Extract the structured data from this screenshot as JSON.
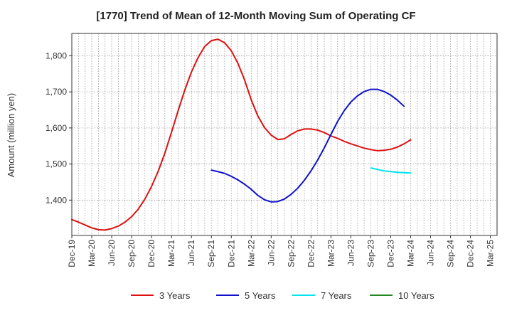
{
  "chart_data": {
    "type": "line",
    "title": "[1770]  Trend of Mean of 12-Month Moving Sum of Operating CF",
    "xlabel": "",
    "ylabel": "Amount (million yen)",
    "ylim": [
      1302,
      1862
    ],
    "yticks": [
      1400,
      1500,
      1600,
      1700,
      1800
    ],
    "ytick_labels": [
      "1,400",
      "1,500",
      "1,600",
      "1,700",
      "1,800"
    ],
    "x_tick_labels": [
      "Dec-19",
      "Mar-20",
      "Jun-20",
      "Sep-20",
      "Dec-20",
      "Mar-21",
      "Jun-21",
      "Sep-21",
      "Dec-21",
      "Mar-22",
      "Jun-22",
      "Sep-22",
      "Dec-22",
      "Mar-23",
      "Jun-23",
      "Sep-23",
      "Dec-23",
      "Mar-24",
      "Jun-24",
      "Sep-24",
      "Dec-24",
      "Mar-25"
    ],
    "x_start": "2019-12",
    "num_months": 64,
    "grid": true,
    "legend_position": "bottom",
    "series": [
      {
        "name": "3 Years",
        "color": "#dd1111",
        "start_index": 0,
        "values": [
          1346,
          1339,
          1331,
          1323,
          1318,
          1317,
          1321,
          1328,
          1339,
          1354,
          1375,
          1403,
          1438,
          1480,
          1530,
          1588,
          1648,
          1705,
          1755,
          1795,
          1826,
          1842,
          1846,
          1836,
          1814,
          1779,
          1733,
          1678,
          1633,
          1601,
          1580,
          1568,
          1570,
          1582,
          1592,
          1597,
          1597,
          1594,
          1587,
          1578,
          1571,
          1563,
          1556,
          1550,
          1544,
          1540,
          1537,
          1538,
          1541,
          1547,
          1556,
          1567
        ]
      },
      {
        "name": "5 Years",
        "color": "#1111cc",
        "start_index": 21,
        "values": [
          1483,
          1479,
          1474,
          1466,
          1456,
          1444,
          1430,
          1413,
          1401,
          1395,
          1396,
          1403,
          1416,
          1433,
          1455,
          1481,
          1511,
          1545,
          1582,
          1618,
          1648,
          1672,
          1689,
          1701,
          1707,
          1707,
          1701,
          1691,
          1677,
          1660
        ]
      },
      {
        "name": "7 Years",
        "color": "#00e5ee",
        "start_index": 45,
        "values": [
          1489,
          1485,
          1481,
          1479,
          1477,
          1476,
          1475
        ]
      },
      {
        "name": "10 Years",
        "color": "#228822",
        "start_index": 51,
        "values": []
      }
    ]
  }
}
